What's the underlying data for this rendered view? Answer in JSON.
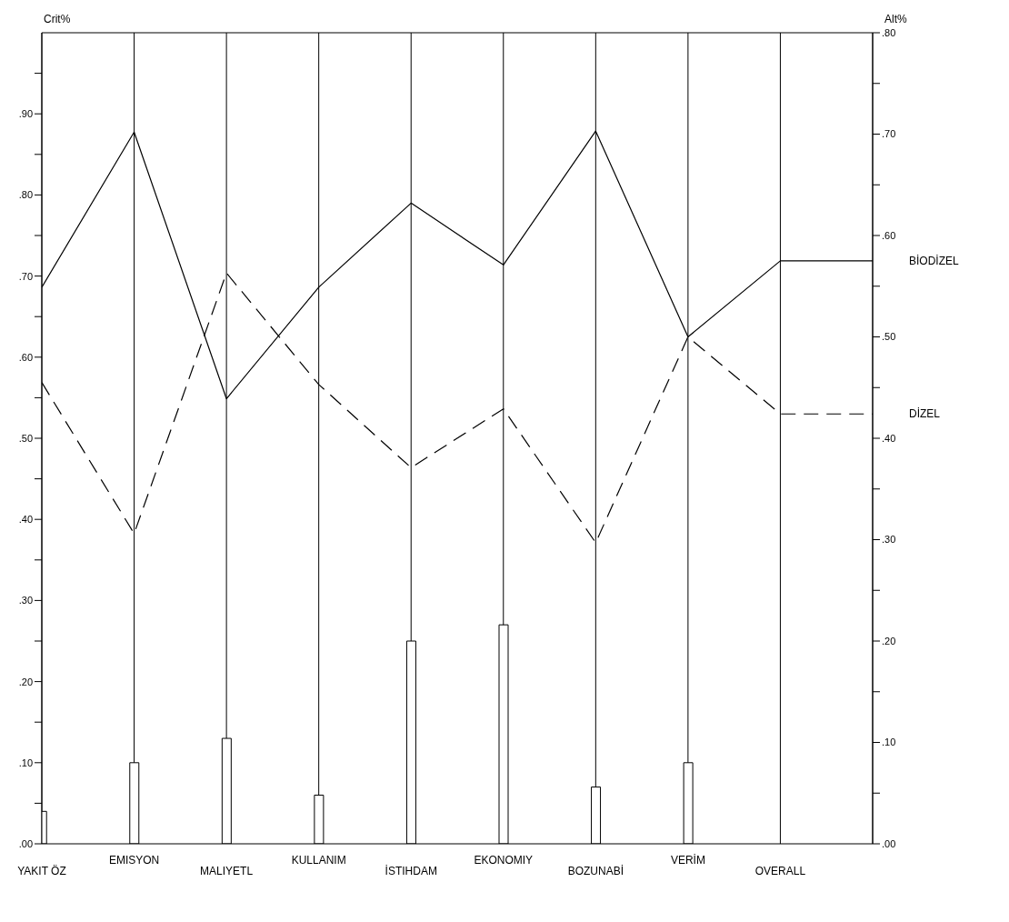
{
  "chart_data": {
    "type": "line",
    "ylabel": "Crit%",
    "y2label": "Alt%",
    "categories": [
      "YAKIT ÖZ",
      "EMISYON",
      "MALIYETL",
      "KULLANIM",
      "İSTIHDAM",
      "EKONOMIY",
      "BOZUNABİ",
      "VERİM",
      "OVERALL",
      null
    ],
    "series": [
      {
        "type": "bar",
        "color": "#ffffff",
        "values": [
          0.04,
          0.1,
          0.13,
          0.06,
          0.25,
          0.27,
          0.07,
          0.1,
          null,
          null
        ]
      },
      {
        "name": "BİODİZEL",
        "axis": "y2",
        "color": "#000000",
        "line_style": "solid",
        "values": [
          0.549,
          0.702,
          0.439,
          0.549,
          0.632,
          0.571,
          0.703,
          0.5,
          0.575,
          0.575
        ]
      },
      {
        "name": "DİZEL",
        "axis": "y2",
        "color": "#000000",
        "line_style": "dashed",
        "values": [
          0.455,
          0.306,
          0.563,
          0.453,
          0.371,
          0.429,
          0.297,
          0.5,
          0.424,
          0.424
        ]
      }
    ],
    "ylim": [
      0,
      1
    ],
    "yticks": [
      {
        "value": 0,
        "label": ".00"
      },
      {
        "value": 0.05,
        "label": null
      },
      {
        "value": 0.1,
        "label": ".10"
      },
      {
        "value": 0.15,
        "label": null
      },
      {
        "value": 0.2,
        "label": ".20"
      },
      {
        "value": 0.25,
        "label": null
      },
      {
        "value": 0.3,
        "label": ".30"
      },
      {
        "value": 0.35,
        "label": null
      },
      {
        "value": 0.4,
        "label": ".40"
      },
      {
        "value": 0.45,
        "label": null
      },
      {
        "value": 0.5,
        "label": ".50"
      },
      {
        "value": 0.55,
        "label": null
      },
      {
        "value": 0.6,
        "label": ".60"
      },
      {
        "value": 0.65,
        "label": null
      },
      {
        "value": 0.7,
        "label": ".70"
      },
      {
        "value": 0.75,
        "label": null
      },
      {
        "value": 0.8,
        "label": ".80"
      },
      {
        "value": 0.85,
        "label": null
      },
      {
        "value": 0.9,
        "label": ".90"
      },
      {
        "value": 0.95,
        "label": null
      }
    ],
    "y2lim": [
      0,
      0.8
    ],
    "y2ticks": [
      {
        "value": 0,
        "label": ".00"
      },
      {
        "value": 0.05,
        "label": null
      },
      {
        "value": 0.1,
        "label": ".10"
      },
      {
        "value": 0.15,
        "label": null
      },
      {
        "value": 0.2,
        "label": ".20"
      },
      {
        "value": 0.25,
        "label": null
      },
      {
        "value": 0.3,
        "label": ".30"
      },
      {
        "value": 0.35,
        "label": null
      },
      {
        "value": 0.4,
        "label": ".40"
      },
      {
        "value": 0.45,
        "label": null
      },
      {
        "value": 0.5,
        "label": ".50"
      },
      {
        "value": 0.55,
        "label": null
      },
      {
        "value": 0.6,
        "label": ".60"
      },
      {
        "value": 0.65,
        "label": null
      },
      {
        "value": 0.7,
        "label": ".70"
      },
      {
        "value": 0.75,
        "label": null
      },
      {
        "value": 0.8,
        "label": ".80"
      }
    ],
    "grid": "x",
    "marker": "none"
  }
}
